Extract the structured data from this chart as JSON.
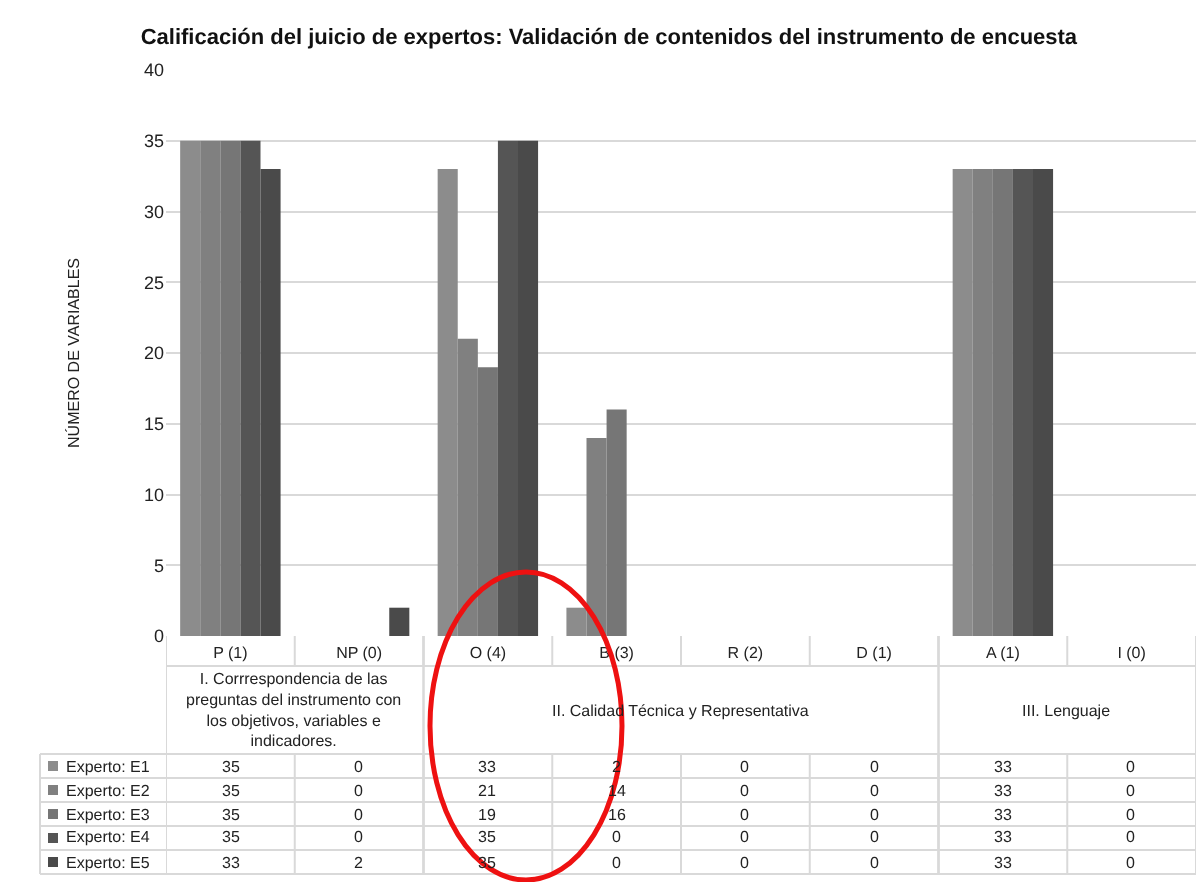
{
  "chart_data": {
    "type": "bar",
    "title": "Calificación del juicio de expertos: Validación de contenidos del instrumento de encuesta",
    "ylabel": "NÚMERO DE VARIABLES",
    "categories": [
      "P (1)",
      "NP (0)",
      "O (4)",
      "B (3)",
      "R (2)",
      "D (1)",
      "A (1)",
      "I (0)"
    ],
    "series": [
      {
        "name": "Experto: E1",
        "color": "#8c8c8c",
        "values": [
          35,
          0,
          33,
          2,
          0,
          0,
          33,
          0
        ]
      },
      {
        "name": "Experto: E2",
        "color": "#808080",
        "values": [
          35,
          0,
          21,
          14,
          0,
          0,
          33,
          0
        ]
      },
      {
        "name": "Experto: E3",
        "color": "#767676",
        "values": [
          35,
          0,
          19,
          16,
          0,
          0,
          33,
          0
        ]
      },
      {
        "name": "Experto: E4",
        "color": "#555555",
        "values": [
          35,
          0,
          35,
          0,
          0,
          0,
          33,
          0
        ]
      },
      {
        "name": "Experto: E5",
        "color": "#4a4a4a",
        "values": [
          33,
          2,
          35,
          0,
          0,
          0,
          33,
          0
        ]
      }
    ],
    "annotations": [
      "I. Corrrespondencia de las preguntas del instrumento con los objetivos, variables e indicadores.",
      "II. Calidad Técnica y Representativa",
      "III. Lenguaje"
    ],
    "ylim": [
      0,
      40
    ],
    "yticks": [
      0,
      5,
      10,
      15,
      20,
      25,
      30,
      35,
      40
    ],
    "grid": "y",
    "data_labels": true,
    "legend": "bottom left"
  }
}
